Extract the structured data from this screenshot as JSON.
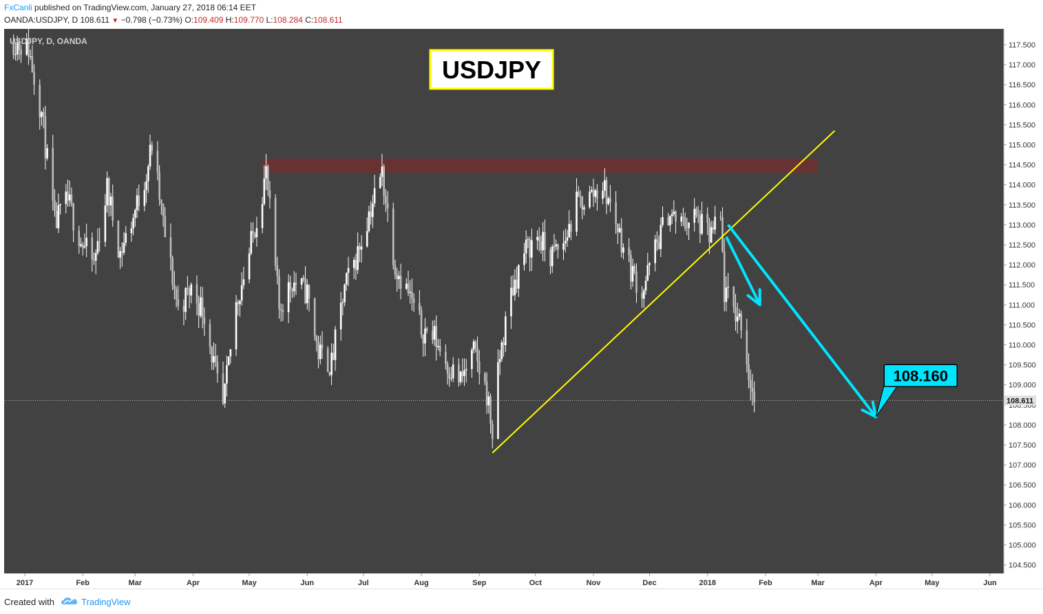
{
  "header": {
    "author": "FxCanli",
    "published": "published on TradingView.com, January 27, 2018 06:14 EET",
    "symbol": "OANDA:USDJPY, D",
    "last": "108.611",
    "arrow": "▼",
    "change": "−0.798 (−0.73%)",
    "o_label": "O:",
    "o_value": "109.409",
    "h_label": "H:",
    "h_value": "109.770",
    "l_label": "L:",
    "l_value": "108.284",
    "c_label": "C:",
    "c_value": "108.611"
  },
  "footer": {
    "created_with": "Created with",
    "brand": "TradingView"
  },
  "colors": {
    "background": "#424242",
    "candle": "#ffffff",
    "trendline": "#ffff00",
    "arrow": "#00e5ff",
    "resistance_zone": "#6d3131",
    "callout": "#00e5ff"
  },
  "chart_data": {
    "type": "candlestick",
    "symbol_label": "USDJPY, D, OANDA",
    "title": "USDJPY",
    "price_axis": {
      "min": 104.0,
      "max": 117.75,
      "ticks": [
        "117.500",
        "117.000",
        "116.500",
        "116.000",
        "115.500",
        "115.000",
        "114.500",
        "114.000",
        "113.500",
        "113.000",
        "112.500",
        "112.000",
        "111.500",
        "111.000",
        "110.500",
        "110.000",
        "109.500",
        "109.000",
        "108.500",
        "108.000",
        "107.500",
        "107.000",
        "106.500",
        "106.000",
        "105.500",
        "105.000",
        "104.500"
      ]
    },
    "time_axis": {
      "ticks": [
        {
          "label": "2017",
          "date": "2017-01-01"
        },
        {
          "label": "Feb",
          "date": "2017-02-01"
        },
        {
          "label": "Mar",
          "date": "2017-03-01"
        },
        {
          "label": "Apr",
          "date": "2017-04-01"
        },
        {
          "label": "May",
          "date": "2017-05-01"
        },
        {
          "label": "Jun",
          "date": "2017-06-01"
        },
        {
          "label": "Jul",
          "date": "2017-07-01"
        },
        {
          "label": "Aug",
          "date": "2017-08-01"
        },
        {
          "label": "Sep",
          "date": "2017-09-01"
        },
        {
          "label": "Oct",
          "date": "2017-10-01"
        },
        {
          "label": "Nov",
          "date": "2017-11-01"
        },
        {
          "label": "Dec",
          "date": "2017-12-01"
        },
        {
          "label": "2018",
          "date": "2018-01-01"
        },
        {
          "label": "Feb",
          "date": "2018-02-01"
        },
        {
          "label": "Mar",
          "date": "2018-03-01"
        },
        {
          "label": "Apr",
          "date": "2018-04-01"
        },
        {
          "label": "May",
          "date": "2018-05-01"
        },
        {
          "label": "Jun",
          "date": "2018-06-01"
        }
      ]
    },
    "price_path": [
      {
        "date": "2016-12-26",
        "close": 117.6
      },
      {
        "date": "2017-01-03",
        "close": 117.4
      },
      {
        "date": "2017-01-10",
        "close": 115.8
      },
      {
        "date": "2017-01-17",
        "close": 113.0
      },
      {
        "date": "2017-01-24",
        "close": 113.6
      },
      {
        "date": "2017-01-31",
        "close": 112.6
      },
      {
        "date": "2017-02-07",
        "close": 112.0
      },
      {
        "date": "2017-02-14",
        "close": 113.9
      },
      {
        "date": "2017-02-21",
        "close": 112.3
      },
      {
        "date": "2017-02-28",
        "close": 113.2
      },
      {
        "date": "2017-03-07",
        "close": 114.3
      },
      {
        "date": "2017-03-10",
        "close": 115.0
      },
      {
        "date": "2017-03-17",
        "close": 112.7
      },
      {
        "date": "2017-03-24",
        "close": 110.9
      },
      {
        "date": "2017-03-31",
        "close": 111.4
      },
      {
        "date": "2017-04-07",
        "close": 110.8
      },
      {
        "date": "2017-04-14",
        "close": 109.0
      },
      {
        "date": "2017-04-17",
        "close": 108.4
      },
      {
        "date": "2017-04-24",
        "close": 111.0
      },
      {
        "date": "2017-05-01",
        "close": 112.3
      },
      {
        "date": "2017-05-10",
        "close": 114.3
      },
      {
        "date": "2017-05-17",
        "close": 110.9
      },
      {
        "date": "2017-05-24",
        "close": 111.6
      },
      {
        "date": "2017-06-01",
        "close": 111.3
      },
      {
        "date": "2017-06-07",
        "close": 109.8
      },
      {
        "date": "2017-06-14",
        "close": 109.5
      },
      {
        "date": "2017-06-21",
        "close": 111.4
      },
      {
        "date": "2017-06-28",
        "close": 112.3
      },
      {
        "date": "2017-07-04",
        "close": 113.3
      },
      {
        "date": "2017-07-11",
        "close": 114.3
      },
      {
        "date": "2017-07-18",
        "close": 112.0
      },
      {
        "date": "2017-07-25",
        "close": 111.3
      },
      {
        "date": "2017-08-01",
        "close": 110.4
      },
      {
        "date": "2017-08-08",
        "close": 110.2
      },
      {
        "date": "2017-08-15",
        "close": 109.5
      },
      {
        "date": "2017-08-22",
        "close": 109.1
      },
      {
        "date": "2017-08-29",
        "close": 109.8
      },
      {
        "date": "2017-09-05",
        "close": 108.8
      },
      {
        "date": "2017-09-08",
        "close": 107.8
      },
      {
        "date": "2017-09-12",
        "close": 109.7
      },
      {
        "date": "2017-09-18",
        "close": 111.3
      },
      {
        "date": "2017-09-25",
        "close": 112.3
      },
      {
        "date": "2017-10-02",
        "close": 112.7
      },
      {
        "date": "2017-10-09",
        "close": 112.2
      },
      {
        "date": "2017-10-16",
        "close": 112.5
      },
      {
        "date": "2017-10-23",
        "close": 113.5
      },
      {
        "date": "2017-10-30",
        "close": 113.7
      },
      {
        "date": "2017-11-06",
        "close": 114.0
      },
      {
        "date": "2017-11-13",
        "close": 113.1
      },
      {
        "date": "2017-11-20",
        "close": 112.0
      },
      {
        "date": "2017-11-27",
        "close": 111.3
      },
      {
        "date": "2017-12-04",
        "close": 112.4
      },
      {
        "date": "2017-12-11",
        "close": 113.3
      },
      {
        "date": "2017-12-18",
        "close": 113.0
      },
      {
        "date": "2017-12-25",
        "close": 113.2
      },
      {
        "date": "2018-01-02",
        "close": 112.7
      },
      {
        "date": "2018-01-08",
        "close": 113.1
      },
      {
        "date": "2018-01-10",
        "close": 111.3
      },
      {
        "date": "2018-01-16",
        "close": 110.8
      },
      {
        "date": "2018-01-19",
        "close": 110.6
      },
      {
        "date": "2018-01-23",
        "close": 109.3
      },
      {
        "date": "2018-01-26",
        "close": 108.6
      }
    ],
    "last_price": "108.611",
    "annotations": {
      "resistance_zone": {
        "from": "2017-05-08",
        "to": "2018-03-01",
        "low": 114.3,
        "high": 114.65
      },
      "trendline": [
        {
          "date": "2017-09-08",
          "price": 107.3
        },
        {
          "date": "2018-03-10",
          "price": 115.35
        }
      ],
      "arrow_short": [
        {
          "date": "2018-01-11",
          "price": 112.7
        },
        {
          "date": "2018-01-29",
          "price": 111.0
        }
      ],
      "arrow_long": [
        {
          "date": "2018-01-12",
          "price": 113.0
        },
        {
          "date": "2018-04-01",
          "price": 108.2
        }
      ],
      "target_label": "108.160"
    }
  }
}
